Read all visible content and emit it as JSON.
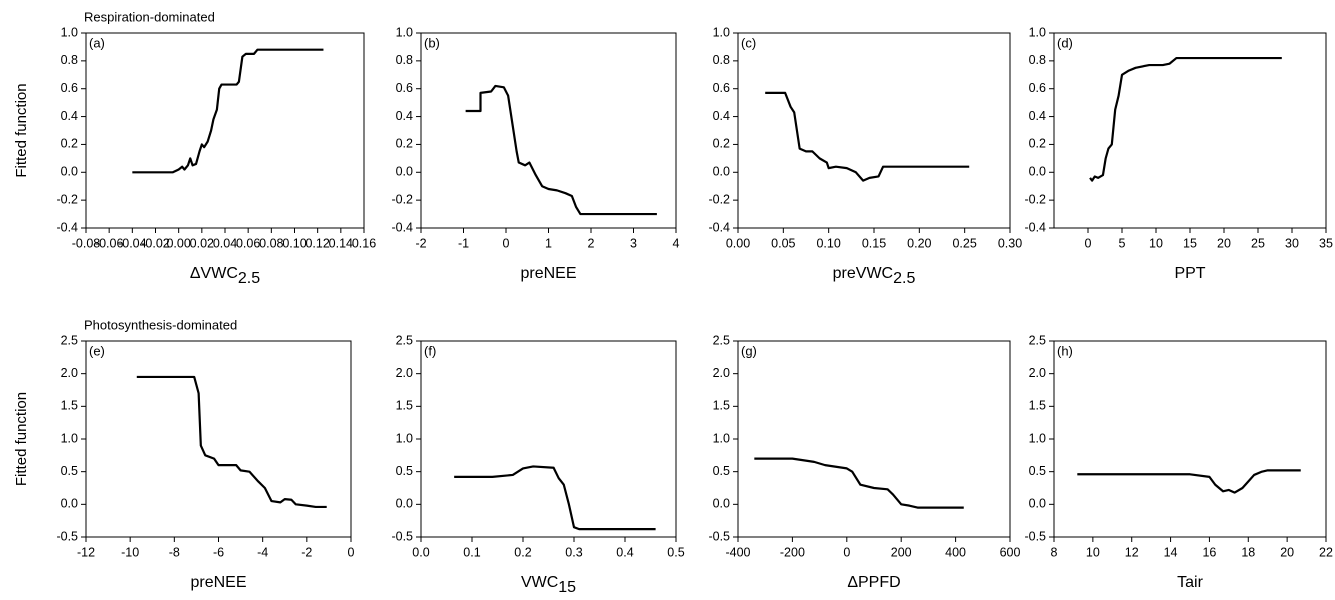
{
  "chart_data": [
    {
      "type": "line",
      "title": "Respiration-dominated",
      "annotation": "(a)",
      "ylabel": "Fitted function",
      "xlabel": "ΔVWC",
      "xlabel_subscript": "2.5",
      "x": [
        -0.04,
        -0.005,
        0,
        0.003,
        0.005,
        0.008,
        0.01,
        0.012,
        0.015,
        0.018,
        0.02,
        0.022,
        0.025,
        0.028,
        0.03,
        0.033,
        0.035,
        0.037,
        0.05,
        0.052,
        0.055,
        0.058,
        0.065,
        0.068,
        0.125
      ],
      "series": [
        {
          "color": "#000000",
          "values": [
            0,
            0,
            0.02,
            0.04,
            0.02,
            0.05,
            0.1,
            0.05,
            0.06,
            0.15,
            0.2,
            0.18,
            0.22,
            0.3,
            0.38,
            0.45,
            0.6,
            0.63,
            0.63,
            0.65,
            0.83,
            0.85,
            0.85,
            0.88,
            0.88
          ]
        }
      ],
      "xlim": [
        -0.08,
        0.16
      ],
      "xticks": [
        -0.08,
        -0.06,
        -0.04,
        -0.02,
        {
          "value": 0,
          "label": "0.00"
        },
        0.02,
        0.04,
        0.06,
        0.08,
        {
          "value": 0.1,
          "label": "0.10"
        },
        0.12,
        0.14,
        0.16
      ],
      "ylim": [
        -0.4,
        1.0
      ],
      "yticks": [
        -0.4,
        -0.2,
        {
          "value": 0,
          "label": "0.0"
        },
        0.2,
        0.4,
        0.6,
        0.8,
        {
          "value": 1,
          "label": "1.0"
        }
      ]
    },
    {
      "type": "line",
      "annotation": "(b)",
      "xlabel": "preNEE",
      "x": [
        -0.95,
        -0.6,
        -0.6,
        -0.35,
        -0.25,
        -0.05,
        0.05,
        0.15,
        0.25,
        0.3,
        0.45,
        0.55,
        0.7,
        0.85,
        1.0,
        1.2,
        1.4,
        1.55,
        1.65,
        1.75,
        3.55
      ],
      "series": [
        {
          "color": "#000000",
          "values": [
            0.44,
            0.44,
            0.57,
            0.58,
            0.62,
            0.61,
            0.55,
            0.35,
            0.15,
            0.07,
            0.05,
            0.07,
            -0.02,
            -0.1,
            -0.12,
            -0.13,
            -0.15,
            -0.17,
            -0.25,
            -0.3,
            -0.3
          ]
        }
      ],
      "xlim": [
        -2,
        4
      ],
      "xticks": [
        -2,
        -1,
        0,
        1,
        2,
        3,
        4
      ],
      "ylim": [
        -0.4,
        1.0
      ],
      "yticks": [
        -0.4,
        -0.2,
        {
          "value": 0,
          "label": "0.0"
        },
        0.2,
        0.4,
        0.6,
        0.8,
        {
          "value": 1,
          "label": "1.0"
        }
      ]
    },
    {
      "type": "line",
      "annotation": "(c)",
      "xlabel": "preVWC",
      "xlabel_subscript": "2.5",
      "x": [
        0.03,
        0.052,
        0.058,
        0.062,
        0.065,
        0.068,
        0.075,
        0.082,
        0.09,
        0.098,
        0.1,
        0.108,
        0.12,
        0.13,
        0.138,
        0.145,
        0.155,
        0.16,
        0.255
      ],
      "series": [
        {
          "color": "#000000",
          "values": [
            0.57,
            0.57,
            0.47,
            0.43,
            0.3,
            0.17,
            0.15,
            0.15,
            0.1,
            0.07,
            0.03,
            0.04,
            0.03,
            0,
            -0.06,
            -0.04,
            -0.03,
            0.04,
            0.04
          ]
        }
      ],
      "xlim": [
        0,
        0.3
      ],
      "xticks": [
        {
          "value": 0,
          "label": "0.00"
        },
        0.05,
        {
          "value": 0.1,
          "label": "0.10"
        },
        0.15,
        {
          "value": 0.2,
          "label": "0.20"
        },
        0.25,
        {
          "value": 0.3,
          "label": "0.30"
        }
      ],
      "ylim": [
        -0.4,
        1.0
      ],
      "yticks": [
        -0.4,
        -0.2,
        {
          "value": 0,
          "label": "0.0"
        },
        0.2,
        0.4,
        0.6,
        0.8,
        {
          "value": 1,
          "label": "1.0"
        }
      ]
    },
    {
      "type": "line",
      "annotation": "(d)",
      "xlabel": "PPT",
      "x": [
        0.3,
        0.6,
        1,
        1.5,
        2.2,
        2.6,
        3,
        3.5,
        4,
        4.5,
        5,
        6,
        7,
        9,
        11,
        12,
        13,
        28.5
      ],
      "series": [
        {
          "color": "#000000",
          "values": [
            -0.04,
            -0.06,
            -0.03,
            -0.04,
            -0.02,
            0.1,
            0.17,
            0.2,
            0.45,
            0.55,
            0.7,
            0.73,
            0.75,
            0.77,
            0.77,
            0.78,
            0.82,
            0.82
          ]
        }
      ],
      "xlim": [
        -5,
        35
      ],
      "xticks": [
        0,
        5,
        10,
        15,
        20,
        25,
        30,
        35
      ],
      "ylim": [
        -0.4,
        1.0
      ],
      "yticks": [
        -0.4,
        -0.2,
        {
          "value": 0,
          "label": "0.0"
        },
        0.2,
        0.4,
        0.6,
        0.8,
        {
          "value": 1,
          "label": "1.0"
        }
      ]
    },
    {
      "type": "line",
      "title": "Photosynthesis-dominated",
      "annotation": "(e)",
      "ylabel": "Fitted function",
      "xlabel": "preNEE",
      "x": [
        -9.7,
        -7.1,
        -6.9,
        -6.8,
        -6.6,
        -6.2,
        -6,
        -5.2,
        -5,
        -4.6,
        -4.2,
        -3.9,
        -3.6,
        -3.2,
        -3,
        -2.7,
        -2.5,
        -2,
        -1.6,
        -1.1
      ],
      "series": [
        {
          "color": "#000000",
          "values": [
            1.95,
            1.95,
            1.7,
            0.9,
            0.75,
            0.7,
            0.6,
            0.6,
            0.52,
            0.5,
            0.35,
            0.25,
            0.05,
            0.03,
            0.08,
            0.07,
            0,
            -0.02,
            -0.04,
            -0.04
          ]
        }
      ],
      "xlim": [
        -12,
        0
      ],
      "xticks": [
        -12,
        -10,
        -8,
        -6,
        -4,
        -2,
        0
      ],
      "ylim": [
        -0.5,
        2.5
      ],
      "yticks": [
        -0.5,
        {
          "value": 0,
          "label": "0.0"
        },
        0.5,
        {
          "value": 1,
          "label": "1.0"
        },
        1.5,
        {
          "value": 2,
          "label": "2.0"
        },
        2.5
      ]
    },
    {
      "type": "line",
      "annotation": "(f)",
      "xlabel": "VWC",
      "xlabel_subscript": "15",
      "x": [
        0.065,
        0.14,
        0.18,
        0.2,
        0.22,
        0.26,
        0.27,
        0.28,
        0.29,
        0.3,
        0.31,
        0.46
      ],
      "series": [
        {
          "color": "#000000",
          "values": [
            0.42,
            0.42,
            0.45,
            0.55,
            0.58,
            0.56,
            0.4,
            0.3,
            0,
            -0.35,
            -0.38,
            -0.38
          ]
        }
      ],
      "xlim": [
        0,
        0.5
      ],
      "xticks": [
        {
          "value": 0,
          "label": "0.0"
        },
        0.1,
        0.2,
        0.3,
        0.4,
        0.5
      ],
      "ylim": [
        -0.5,
        2.5
      ],
      "yticks": [
        -0.5,
        {
          "value": 0,
          "label": "0.0"
        },
        0.5,
        {
          "value": 1,
          "label": "1.0"
        },
        1.5,
        {
          "value": 2,
          "label": "2.0"
        },
        2.5
      ]
    },
    {
      "type": "line",
      "annotation": "(g)",
      "xlabel": "ΔPPFD",
      "x": [
        -340,
        -200,
        -120,
        -80,
        0,
        20,
        50,
        100,
        150,
        170,
        200,
        230,
        260,
        430
      ],
      "series": [
        {
          "color": "#000000",
          "values": [
            0.7,
            0.7,
            0.65,
            0.6,
            0.55,
            0.5,
            0.3,
            0.25,
            0.23,
            0.15,
            0,
            -0.02,
            -0.05,
            -0.05
          ]
        }
      ],
      "xlim": [
        -400,
        600
      ],
      "xticks": [
        -400,
        -200,
        0,
        200,
        400,
        600
      ],
      "ylim": [
        -0.5,
        2.5
      ],
      "yticks": [
        -0.5,
        {
          "value": 0,
          "label": "0.0"
        },
        0.5,
        {
          "value": 1,
          "label": "1.0"
        },
        1.5,
        {
          "value": 2,
          "label": "2.0"
        },
        2.5
      ]
    },
    {
      "type": "line",
      "annotation": "(h)",
      "xlabel": "Tair",
      "x": [
        9.2,
        15,
        16,
        16.3,
        16.7,
        17,
        17.3,
        17.7,
        18,
        18.3,
        18.7,
        19,
        20.7
      ],
      "series": [
        {
          "color": "#000000",
          "values": [
            0.46,
            0.46,
            0.42,
            0.3,
            0.2,
            0.22,
            0.18,
            0.25,
            0.35,
            0.45,
            0.5,
            0.52,
            0.52
          ]
        }
      ],
      "xlim": [
        8,
        22
      ],
      "xticks": [
        8,
        10,
        12,
        14,
        16,
        18,
        20,
        22
      ],
      "ylim": [
        -0.5,
        2.5
      ],
      "yticks": [
        -0.5,
        {
          "value": 0,
          "label": "0.0"
        },
        0.5,
        {
          "value": 1,
          "label": "1.0"
        },
        1.5,
        {
          "value": 2,
          "label": "2.0"
        },
        2.5
      ]
    }
  ]
}
